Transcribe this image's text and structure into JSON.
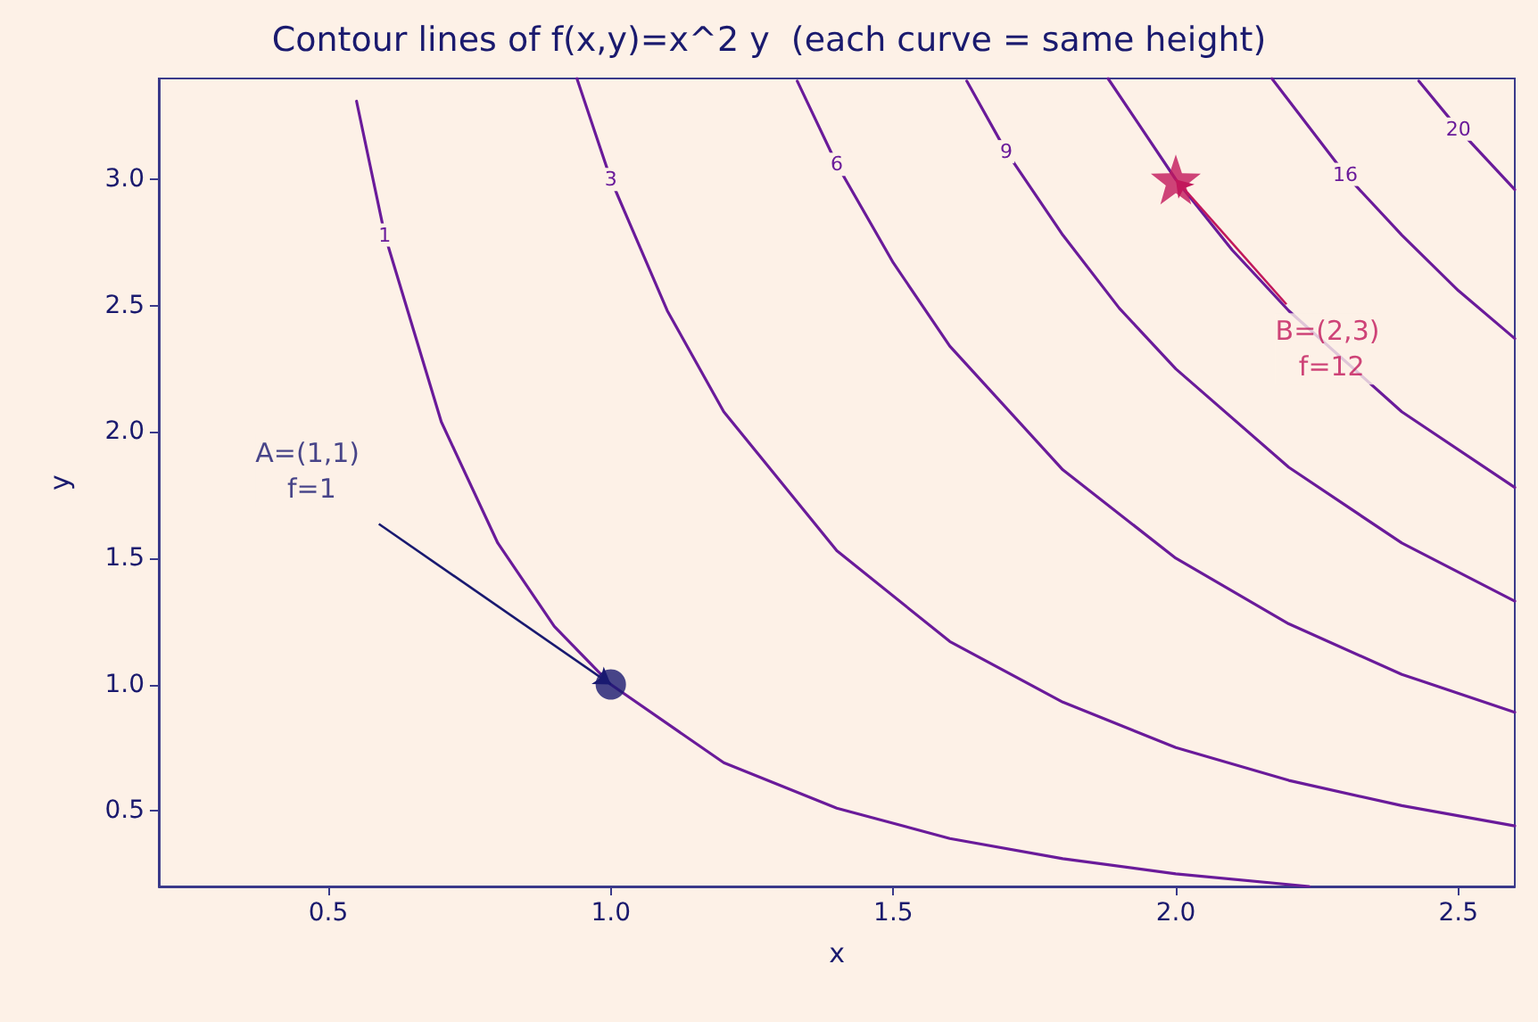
{
  "chart_data": {
    "type": "line",
    "title": "Contour lines of f(x,y)=x^2 y  (each curve = same height)",
    "xlabel": "x",
    "ylabel": "y",
    "xlim": [
      0.2,
      2.6
    ],
    "ylim": [
      0.2,
      3.4
    ],
    "xticks": [
      0.5,
      {
        "value": 1,
        "label": "1.0"
      },
      1.5,
      {
        "value": 2,
        "label": "2.0"
      },
      2.5
    ],
    "yticks": [
      0.5,
      {
        "value": 1,
        "label": "1.0"
      },
      1.5,
      {
        "value": 2,
        "label": "2.0"
      },
      2.5,
      {
        "value": 3,
        "label": "3.0"
      }
    ],
    "grid": false,
    "legend": false,
    "marker": "none",
    "line_style": "solid",
    "series": [
      {
        "name": "1",
        "color": "#6a1b9a",
        "x": [
          0.55,
          0.6,
          0.7,
          0.8,
          0.9,
          1.0,
          1.2,
          1.4,
          1.6,
          1.8,
          2.0,
          2.236
        ],
        "values": [
          3.31,
          2.78,
          2.04,
          1.56,
          1.23,
          1.0,
          0.69,
          0.51,
          0.39,
          0.31,
          0.25,
          0.2
        ]
      },
      {
        "name": "3",
        "color": "#6a1b9a",
        "x": [
          0.94,
          1.0,
          1.1,
          1.2,
          1.4,
          1.6,
          1.8,
          2.0,
          2.2,
          2.4,
          2.6
        ],
        "values": [
          3.4,
          3.0,
          2.48,
          2.08,
          1.53,
          1.17,
          0.93,
          0.75,
          0.62,
          0.52,
          0.44
        ]
      },
      {
        "name": "6",
        "color": "#6a1b9a",
        "x": [
          1.33,
          1.4,
          1.5,
          1.6,
          1.8,
          2.0,
          2.2,
          2.4,
          2.6
        ],
        "values": [
          3.39,
          3.06,
          2.67,
          2.34,
          1.85,
          1.5,
          1.24,
          1.04,
          0.89
        ]
      },
      {
        "name": "9",
        "color": "#6a1b9a",
        "x": [
          1.63,
          1.7,
          1.8,
          1.9,
          2.0,
          2.2,
          2.4,
          2.6
        ],
        "values": [
          3.39,
          3.11,
          2.78,
          2.49,
          2.25,
          1.86,
          1.56,
          1.33
        ]
      },
      {
        "color": "#6a1b9a",
        "x": [
          1.88,
          2.0,
          2.1,
          2.2,
          2.4,
          2.6
        ],
        "values": [
          3.4,
          3.0,
          2.72,
          2.48,
          2.08,
          1.78
        ]
      },
      {
        "name": "16",
        "color": "#6a1b9a",
        "x": [
          2.17,
          2.3,
          2.4,
          2.5,
          2.6
        ],
        "values": [
          3.4,
          3.02,
          2.78,
          2.56,
          2.37
        ]
      },
      {
        "name": "20",
        "color": "#6a1b9a",
        "x": [
          2.43,
          2.5,
          2.6
        ],
        "values": [
          3.39,
          3.2,
          2.96
        ]
      },
      {
        "type": "scatter",
        "marker": "circle",
        "color": "#191970",
        "x": [
          1
        ],
        "values": [
          1
        ]
      },
      {
        "type": "scatter",
        "marker": "star",
        "color": "#c2185b",
        "x": [
          2
        ],
        "values": [
          3
        ]
      }
    ],
    "annotations": [
      {
        "text": "A=(1,1)\n f=1",
        "x": 1,
        "y": 1
      },
      {
        "text": "B=(2,3)\n f=12",
        "x": 2,
        "y": 3
      }
    ]
  }
}
